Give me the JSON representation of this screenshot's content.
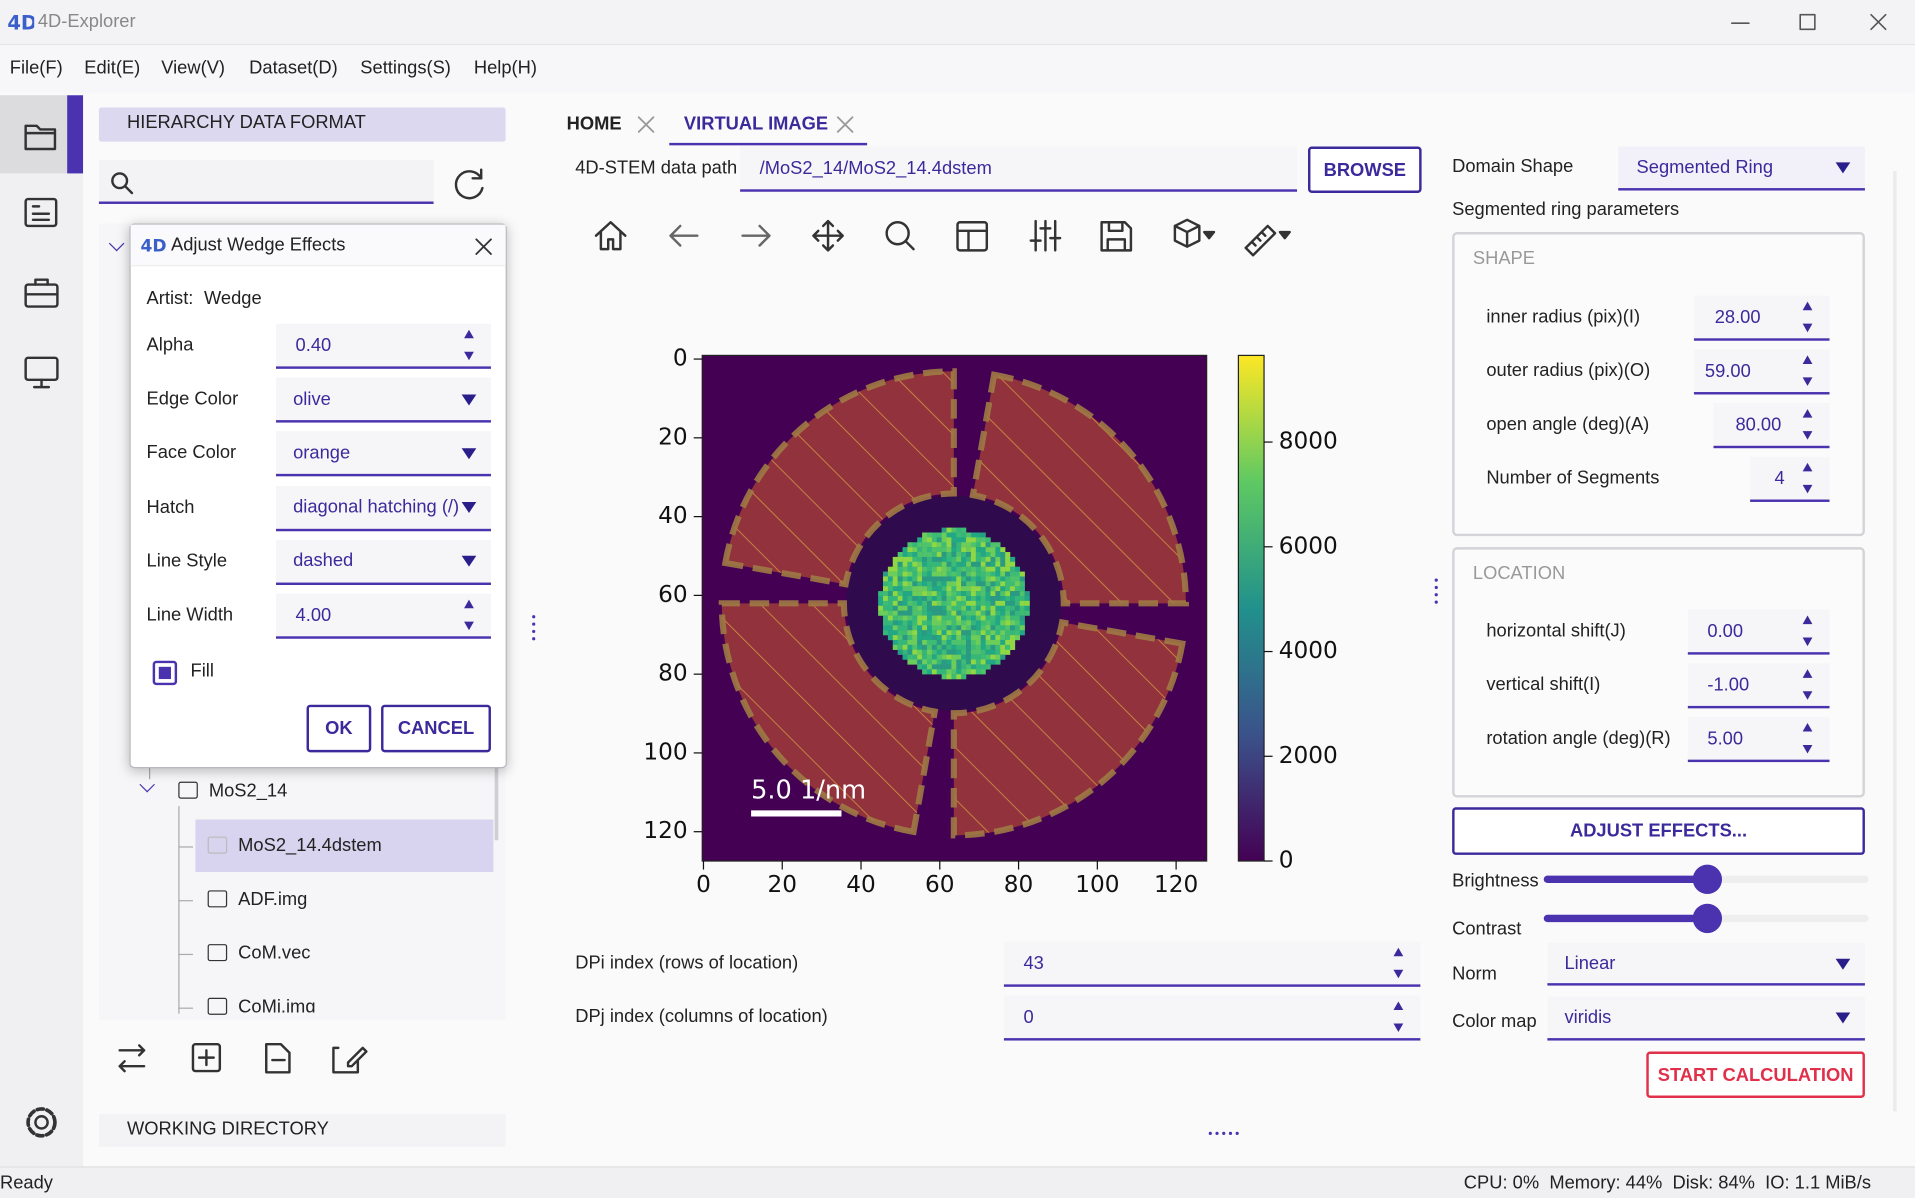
{
  "window": {
    "title": "4D-Explorer"
  },
  "menu": [
    "File(F)",
    "Edit(E)",
    "View(V)",
    "Dataset(D)",
    "Settings(S)",
    "Help(H)"
  ],
  "left_panel": {
    "header": "HIERARCHY DATA FORMAT",
    "tree": [
      "MoS2_14",
      "MoS2_14.4dstem",
      "ADF.img",
      "CoM.vec",
      "CoMi.img"
    ],
    "footer": "WORKING DIRECTORY"
  },
  "dialog": {
    "title": "Adjust Wedge Effects",
    "artist_label": "Artist:",
    "artist": "Wedge",
    "fields": [
      {
        "label": "Alpha",
        "value": "0.40"
      },
      {
        "label": "Edge Color",
        "value": "olive"
      },
      {
        "label": "Face Color",
        "value": "orange"
      },
      {
        "label": "Hatch",
        "value": "diagonal hatching (/)"
      },
      {
        "label": "Line Style",
        "value": "dashed"
      },
      {
        "label": "Line Width",
        "value": "4.00"
      }
    ],
    "fill_label": "Fill",
    "ok": "OK",
    "cancel": "CANCEL"
  },
  "tabs": [
    "HOME",
    "VIRTUAL IMAGE"
  ],
  "data_path": {
    "label": "4D-STEM data path",
    "value": "/MoS2_14/MoS2_14.4dstem",
    "button": "BROWSE"
  },
  "plot": {
    "xticks": [
      0,
      20,
      40,
      60,
      80,
      100,
      120
    ],
    "yticks": [
      0,
      20,
      40,
      60,
      80,
      100,
      120
    ],
    "colorbar_ticks": [
      0,
      2000,
      4000,
      6000,
      8000
    ],
    "scale_bar": "5.0 1/nm"
  },
  "indices": [
    {
      "label": "DPi index (rows of location)",
      "value": "43"
    },
    {
      "label": "DPj index (columns of location)",
      "value": "0"
    }
  ],
  "right_panel": {
    "domain_shape_label": "Domain Shape",
    "domain_shape": "Segmented Ring",
    "params_title": "Segmented ring parameters",
    "shape_group": "SHAPE",
    "shape_fields": [
      {
        "label": "inner radius (pix)(I)",
        "value": "28.00"
      },
      {
        "label": "outer radius (pix)(O)",
        "value": "59.00"
      },
      {
        "label": "open angle (deg)(A)",
        "value": "80.00"
      },
      {
        "label": "Number of Segments",
        "value": "4"
      }
    ],
    "location_group": "LOCATION",
    "location_fields": [
      {
        "label": "horizontal shift(J)",
        "value": "0.00"
      },
      {
        "label": "vertical shift(I)",
        "value": "-1.00"
      },
      {
        "label": "rotation angle (deg)(R)",
        "value": "5.00"
      }
    ],
    "adjust_button": "ADJUST EFFECTS...",
    "brightness_label": "Brightness",
    "contrast_label": "Contrast",
    "norm_label": "Norm",
    "norm": "Linear",
    "cmap_label": "Color map",
    "cmap": "viridis",
    "start_button": "START CALCULATION"
  },
  "status": {
    "left": "Ready",
    "right": "CPU: 0%  Memory: 44%  Disk: 84%  IO: 1.1 MiB/s"
  }
}
